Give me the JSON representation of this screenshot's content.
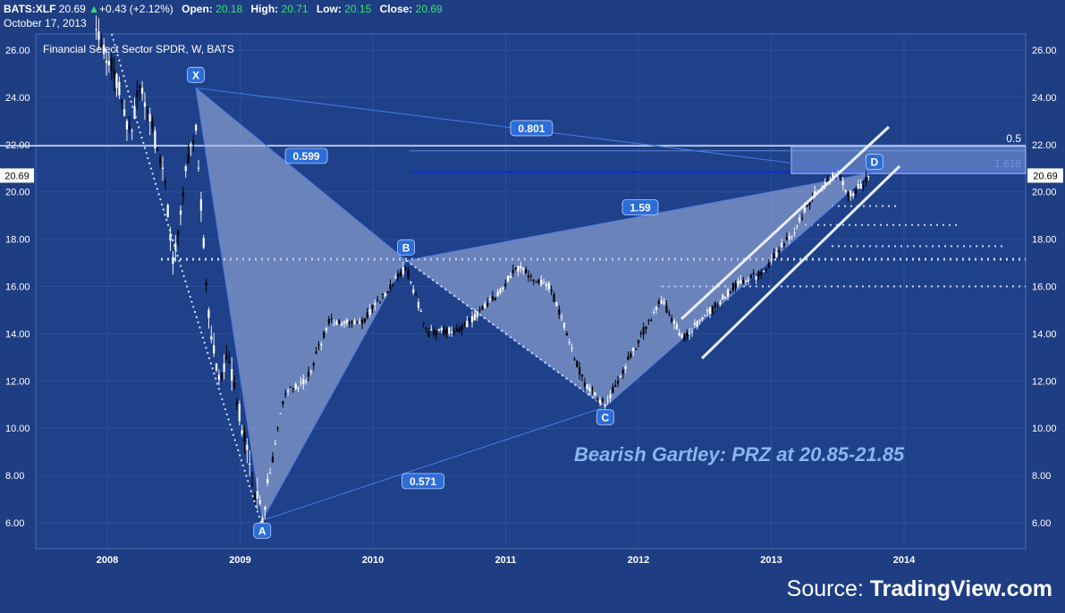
{
  "header": {
    "symbol": "BATS:XLF",
    "last": "20.69",
    "change_arrow": "▲",
    "change": "+0.43 (+2.12%)",
    "open_label": "Open:",
    "open": "20.18",
    "high_label": "High:",
    "high": "20.71",
    "low_label": "Low:",
    "low": "20.15",
    "close_label": "Close:",
    "close": "20.69",
    "date": "October 17, 2013"
  },
  "chart_data": {
    "type": "candlestick",
    "title": "Financial Select Sector SPDR, W, BATS",
    "ylim": [
      4.8,
      26.8
    ],
    "y_ticks": [
      "6.00",
      "8.00",
      "10.00",
      "12.00",
      "14.00",
      "16.00",
      "18.00",
      "20.00",
      "22.00",
      "24.00",
      "26.00"
    ],
    "x_ticks": [
      "2008",
      "2009",
      "2010",
      "2011",
      "2012",
      "2013",
      "2014"
    ],
    "last_price_label": "20.69",
    "approx_price_path": [
      [
        "2007-12",
        27.0
      ],
      [
        "2008-02",
        24.5
      ],
      [
        "2008-03",
        22.5
      ],
      [
        "2008-04",
        24.5
      ],
      [
        "2008-06",
        21.0
      ],
      [
        "2008-07",
        17.0
      ],
      [
        "2008-08",
        20.5
      ],
      [
        "2008-09",
        23.0
      ],
      [
        "2008-10",
        15.5
      ],
      [
        "2008-11",
        12.0
      ],
      [
        "2008-12",
        13.0
      ],
      [
        "2009-02",
        8.0
      ],
      [
        "2009-03",
        6.2
      ],
      [
        "2009-05",
        11.5
      ],
      [
        "2009-07",
        12.0
      ],
      [
        "2009-09",
        14.5
      ],
      [
        "2009-12",
        14.5
      ],
      [
        "2010-04",
        16.8
      ],
      [
        "2010-06",
        14.0
      ],
      [
        "2010-09",
        14.2
      ],
      [
        "2010-12",
        15.5
      ],
      [
        "2011-02",
        16.8
      ],
      [
        "2011-05",
        16.0
      ],
      [
        "2011-08",
        12.0
      ],
      [
        "2011-10",
        11.0
      ],
      [
        "2011-12",
        12.8
      ],
      [
        "2012-03",
        15.5
      ],
      [
        "2012-05",
        13.8
      ],
      [
        "2012-08",
        15.2
      ],
      [
        "2012-10",
        16.2
      ],
      [
        "2012-12",
        16.5
      ],
      [
        "2013-03",
        18.3
      ],
      [
        "2013-05",
        20.0
      ],
      [
        "2013-07",
        20.8
      ],
      [
        "2013-08",
        19.8
      ],
      [
        "2013-10",
        20.69
      ]
    ],
    "pattern": {
      "name": "Bearish Gartley",
      "points": [
        {
          "label": "X",
          "date": "2008-09",
          "price": 24.4
        },
        {
          "label": "A",
          "date": "2009-03",
          "price": 6.1
        },
        {
          "label": "B",
          "date": "2010-04",
          "price": 17.1
        },
        {
          "label": "C",
          "date": "2011-10",
          "price": 10.9
        },
        {
          "label": "D",
          "date": "2013-10",
          "price": 20.8
        }
      ],
      "ratios": [
        {
          "label": "0.599",
          "between": "XA-AB"
        },
        {
          "label": "0.571",
          "between": "AB-BC"
        },
        {
          "label": "1.59",
          "between": "BC-CD"
        },
        {
          "label": "0.801",
          "between": "XA-AD"
        }
      ]
    },
    "annotations": {
      "prz_text": "Bearish Gartley: PRZ at 20.85-21.85",
      "prz_range": [
        20.85,
        21.85
      ],
      "level_05_label": "0.5",
      "level_05_price": 21.95,
      "level_1618_label": "1.618",
      "level_1618_price": 20.85,
      "horizontal_support_levels": [
        19.4,
        18.6,
        17.7,
        17.15,
        16.0
      ]
    },
    "colors": {
      "background": "#1e3d82",
      "plot": "#1f4189",
      "pattern_fill": "#aab9e4",
      "marker": "#2c6dd8",
      "prz_box": "#7f9ee0",
      "label_text": "#8db4ec"
    }
  },
  "footer": {
    "source_prefix": "Source: ",
    "source_brand": "TradingView.com"
  }
}
